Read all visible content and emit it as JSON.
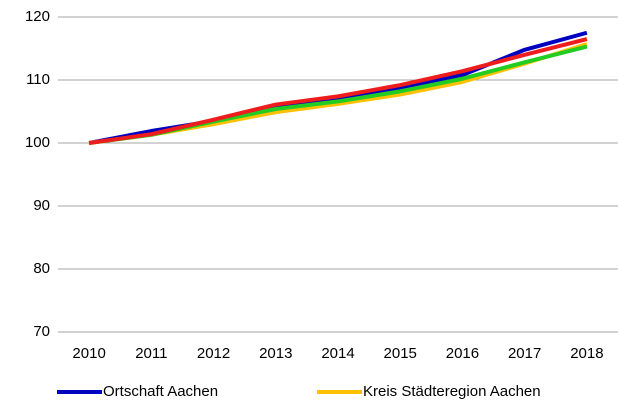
{
  "chart_data": {
    "type": "line",
    "categories": [
      "2010",
      "2011",
      "2012",
      "2013",
      "2014",
      "2015",
      "2016",
      "2017",
      "2018"
    ],
    "series": [
      {
        "name": "Ortschaft Aachen",
        "color": "#0000c0",
        "values": [
          100,
          101.9,
          103.5,
          105.8,
          107.2,
          108.7,
          110.8,
          114.8,
          117.5
        ]
      },
      {
        "name": "Kreis Städteregion Aachen",
        "color": "#ffc000",
        "values": [
          100,
          101.3,
          103.0,
          104.9,
          106.2,
          107.7,
          109.7,
          112.6,
          115.7
        ]
      },
      {
        "color": "#22cc22",
        "values": [
          100,
          101.3,
          103.4,
          105.4,
          106.6,
          108.2,
          110.2,
          112.8,
          115.3
        ]
      },
      {
        "color": "#ee1c1c",
        "values": [
          100,
          101.4,
          103.7,
          106.1,
          107.4,
          109.2,
          111.4,
          114.0,
          116.5
        ]
      }
    ],
    "ylim": [
      70,
      120
    ],
    "yticks": [
      70,
      80,
      90,
      100,
      110,
      120
    ],
    "grid": true
  }
}
